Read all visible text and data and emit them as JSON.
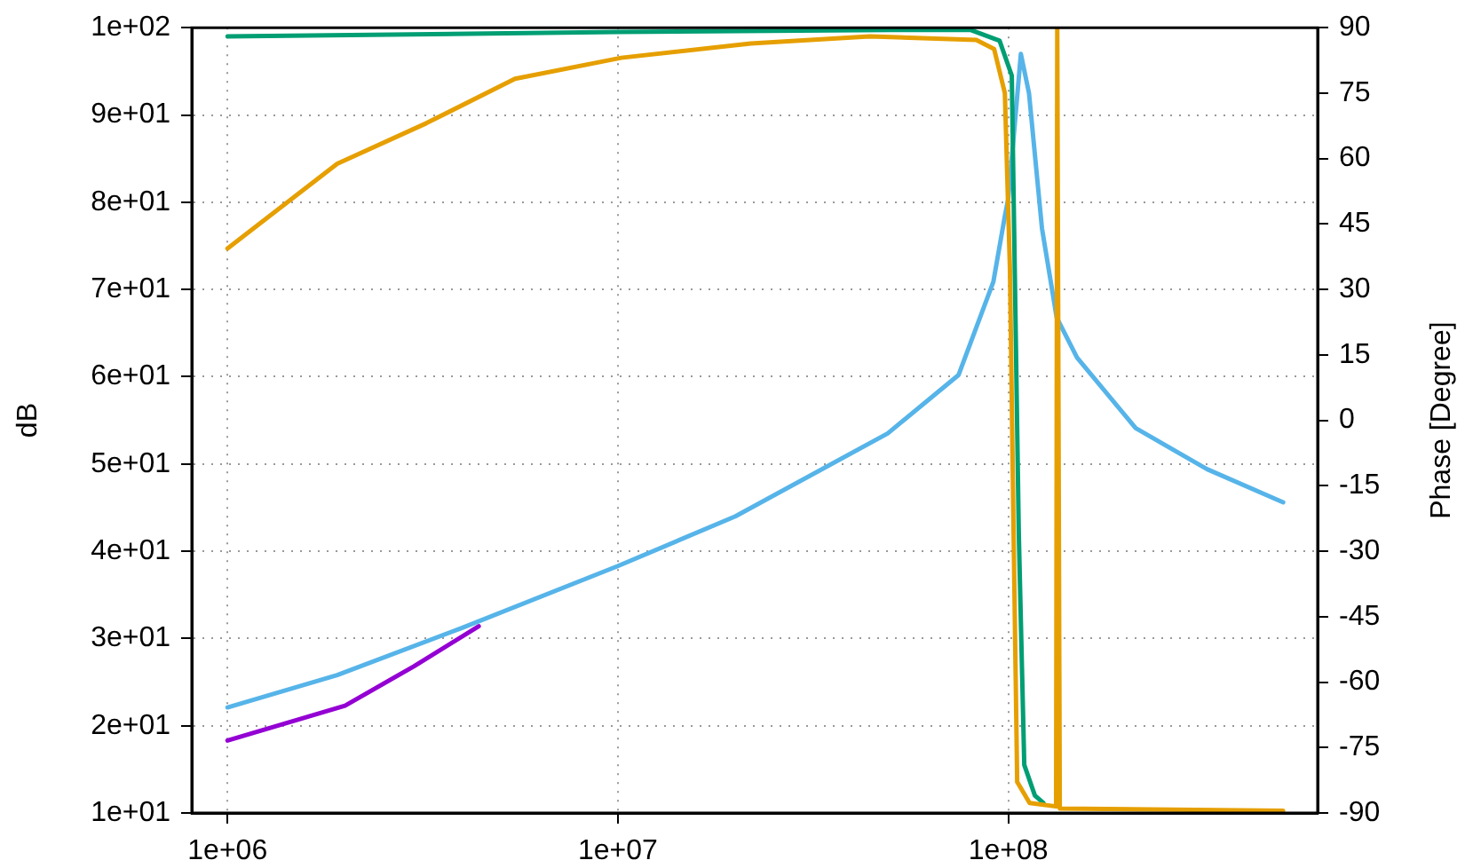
{
  "chart_data": {
    "type": "line",
    "ylabel": "dB",
    "y2label": "Phase [Degree]",
    "log": "x",
    "grid": true,
    "legend": false,
    "marker": "none",
    "line_style": "solid",
    "xlim": [
      810000,
      620000000
    ],
    "xticks": [
      {
        "value": 1000000,
        "label": "1e+06"
      },
      {
        "value": 10000000,
        "label": "1e+07"
      },
      {
        "value": 100000000,
        "label": "1e+08"
      }
    ],
    "ylim": [
      10,
      100
    ],
    "yticks": [
      {
        "value": 10,
        "label": "1e+01"
      },
      {
        "value": 20,
        "label": "2e+01"
      },
      {
        "value": 30,
        "label": "3e+01"
      },
      {
        "value": 40,
        "label": "4e+01"
      },
      {
        "value": 50,
        "label": "5e+01"
      },
      {
        "value": 60,
        "label": "6e+01"
      },
      {
        "value": 70,
        "label": "7e+01"
      },
      {
        "value": 80,
        "label": "8e+01"
      },
      {
        "value": 90,
        "label": "9e+01"
      },
      {
        "value": 100,
        "label": "1e+02"
      }
    ],
    "y2lim": [
      -90,
      90
    ],
    "y2ticks": [
      -90,
      -75,
      -60,
      -45,
      -30,
      -15,
      0,
      15,
      30,
      45,
      60,
      75,
      90
    ],
    "series": [
      {
        "color": "#9400d3",
        "x": [
          1000000,
          2000000,
          3000000,
          4400000
        ],
        "values": [
          18.3,
          22.3,
          26.8,
          31.4
        ]
      },
      {
        "color": "#56b4e9",
        "x": [
          1000000,
          1910000,
          3980000,
          10000000,
          20000000,
          49100000,
          74600000,
          91600000,
          98000000,
          100000000,
          104000000,
          107700000,
          113000000,
          122000000,
          133000000,
          150000000,
          212000000,
          323000000,
          506000000
        ],
        "values": [
          22.1,
          25.8,
          31.2,
          38.3,
          44,
          53.5,
          60.2,
          70.9,
          78.4,
          80.4,
          89.1,
          97,
          92.5,
          77,
          66.8,
          62.2,
          54.1,
          49.4,
          45.6
        ]
      },
      {
        "color": "#009e73",
        "axis": "y2",
        "x": [
          1000000,
          10000000,
          50000000,
          80000000,
          95000000,
          102100000,
          106400000,
          109900000,
          117000000,
          123000000
        ],
        "values": [
          88,
          89,
          89.5,
          89.5,
          87,
          79,
          -26,
          -79,
          -86,
          -87.7
        ]
      },
      {
        "color": "#e69f00",
        "axis": "y2",
        "x": [
          1000000,
          1910000,
          3230000,
          5450000,
          10200000,
          21900000,
          44200000,
          82800000,
          92000000,
          98000000,
          101000000,
          103200000,
          105400000,
          113400000,
          132600000,
          133500000,
          134000000,
          135500000,
          506000000
        ],
        "values": [
          39.4,
          58.8,
          68.1,
          78.3,
          83.1,
          86.4,
          88,
          87.2,
          85.1,
          75,
          34.5,
          -26,
          -82.9,
          -87.7,
          -88.5,
          90,
          90,
          -89,
          -89.5
        ]
      }
    ]
  }
}
